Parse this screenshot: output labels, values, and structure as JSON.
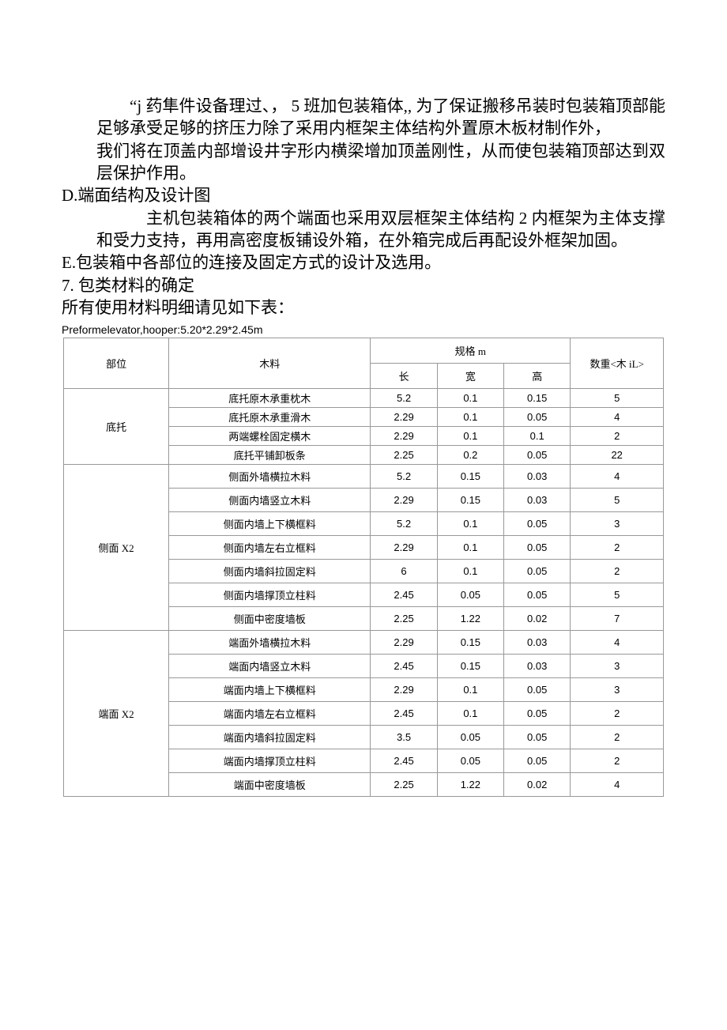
{
  "paragraphs": {
    "p1": "“j 药隼件设备理过、， 5 班加包装箱体,, 为了保证搬移吊装时包装箱顶部能足够承受足够的挤压力除了采用内框架主体结构外置原木板材制作外，",
    "p2": "我们将在顶盖内部增设井字形内横梁增加顶盖刚性，从而使包装箱顶部达到双层保护作用。",
    "d_label": "D.端面结构及设计图",
    "p3": "主机包装箱体的两个端面也采用双层框架主体结构 2 内框架为主体支撑和受力支持，再用高密度板铺设外箱，在外箱完成后再配设外框架加固。",
    "e_label": "E.包装箱中各部位的连接及固定方式的设计及选用。",
    "h7": "7. 包类材料的确定",
    "p4": "所有使用材料明细请见如下表："
  },
  "table": {
    "title": "Preformelevator,hooper:5.20*2.29*2.45m",
    "headers": {
      "part": "部位",
      "material": "木料",
      "spec": "规格 m",
      "len": "长",
      "wid": "宽",
      "hei": "高",
      "qty": "数重<木 iL>"
    },
    "sections": [
      {
        "part": "底托",
        "rows": [
          {
            "m": "底托原木承重枕木",
            "l": "5.2",
            "w": "0.1",
            "h": "0.15",
            "q": "5"
          },
          {
            "m": "底托原木承重滑木",
            "l": "2.29",
            "w": "0.1",
            "h": "0.05",
            "q": "4"
          },
          {
            "m": "两端螺栓固定横木",
            "l": "2.29",
            "w": "0.1",
            "h": "0.1",
            "q": "2"
          },
          {
            "m": "底托平铺卸板条",
            "l": "2.25",
            "w": "0.2",
            "h": "0.05",
            "q": "22"
          }
        ]
      },
      {
        "part": "侧面 X2",
        "rows": [
          {
            "m": "侧面外墙横拉木料",
            "l": "5.2",
            "w": "0.15",
            "h": "0.03",
            "q": "4"
          },
          {
            "m": "侧面内墙竖立木料",
            "l": "2.29",
            "w": "0.15",
            "h": "0.03",
            "q": "5"
          },
          {
            "m": "侧面内墙上下横框料",
            "l": "5.2",
            "w": "0.1",
            "h": "0.05",
            "q": "3"
          },
          {
            "m": "侧面内墙左右立框料",
            "l": "2.29",
            "w": "0.1",
            "h": "0.05",
            "q": "2"
          },
          {
            "m": "侧面内墙斜拉固定料",
            "l": "6",
            "w": "0.1",
            "h": "0.05",
            "q": "2"
          },
          {
            "m": "侧面内墙撑顶立柱料",
            "l": "2.45",
            "w": "0.05",
            "h": "0.05",
            "q": "5"
          },
          {
            "m": "侧面中密度墙板",
            "l": "2.25",
            "w": "1.22",
            "h": "0.02",
            "q": "7"
          }
        ]
      },
      {
        "part": "端面 X2",
        "rows": [
          {
            "m": "端面外墙横拉木料",
            "l": "2.29",
            "w": "0.15",
            "h": "0.03",
            "q": "4"
          },
          {
            "m": "端面内墙竖立木料",
            "l": "2.45",
            "w": "0.15",
            "h": "0.03",
            "q": "3"
          },
          {
            "m": "端面内墙上下横框料",
            "l": "2.29",
            "w": "0.1",
            "h": "0.05",
            "q": "3"
          },
          {
            "m": "端面内墙左右立框料",
            "l": "2.45",
            "w": "0.1",
            "h": "0.05",
            "q": "2"
          },
          {
            "m": "端面内墙斜拉固定料",
            "l": "3.5",
            "w": "0.05",
            "h": "0.05",
            "q": "2"
          },
          {
            "m": "端面内墙撑顶立柱料",
            "l": "2.45",
            "w": "0.05",
            "h": "0.05",
            "q": "2"
          },
          {
            "m": "端面中密度墙板",
            "l": "2.25",
            "w": "1.22",
            "h": "0.02",
            "q": "4"
          }
        ]
      }
    ]
  }
}
